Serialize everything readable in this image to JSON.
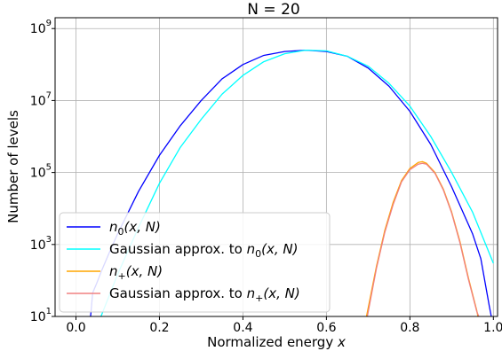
{
  "chart_data": {
    "type": "line",
    "title": "N = 20",
    "xlabel": "Normalized energy x",
    "ylabel": "Number of levels",
    "yscale": "log",
    "xlim": [
      -0.05,
      1.01
    ],
    "ylim": [
      10,
      2000000000
    ],
    "grid": true,
    "legend_position": "lower-left",
    "x_ticks": [
      "0.0",
      "0.2",
      "0.4",
      "0.6",
      "0.8",
      "1.0"
    ],
    "y_ticks": [
      {
        "base": "10",
        "exp": "1",
        "value": 10
      },
      {
        "base": "10",
        "exp": "3",
        "value": 1000
      },
      {
        "base": "10",
        "exp": "5",
        "value": 100000
      },
      {
        "base": "10",
        "exp": "7",
        "value": 10000000
      },
      {
        "base": "10",
        "exp": "9",
        "value": 1000000000
      }
    ],
    "series": [
      {
        "name": "n₀(x, N)",
        "color": "#0000ff",
        "points": [
          [
            0.035,
            10
          ],
          [
            0.036,
            13
          ],
          [
            0.04,
            45
          ],
          [
            0.05,
            85
          ],
          [
            0.06,
            170
          ],
          [
            0.08,
            600
          ],
          [
            0.1,
            2000
          ],
          [
            0.15,
            30000
          ],
          [
            0.2,
            300000
          ],
          [
            0.25,
            2000000
          ],
          [
            0.3,
            10000000
          ],
          [
            0.35,
            40000000
          ],
          [
            0.4,
            100000000
          ],
          [
            0.45,
            180000000
          ],
          [
            0.5,
            230000000
          ],
          [
            0.55,
            250000000
          ],
          [
            0.6,
            230000000
          ],
          [
            0.65,
            170000000
          ],
          [
            0.7,
            80000000
          ],
          [
            0.75,
            25000000
          ],
          [
            0.8,
            5000000
          ],
          [
            0.85,
            600000
          ],
          [
            0.9,
            40000
          ],
          [
            0.95,
            2000
          ],
          [
            0.97,
            400
          ],
          [
            0.99,
            20
          ],
          [
            0.995,
            10
          ]
        ]
      },
      {
        "name": "Gaussian approx. to n₀(x, N)",
        "color": "#00ffff",
        "points": [
          [
            0.06,
            10
          ],
          [
            0.1,
            150
          ],
          [
            0.15,
            3000
          ],
          [
            0.2,
            50000
          ],
          [
            0.25,
            500000
          ],
          [
            0.3,
            3000000
          ],
          [
            0.35,
            15000000
          ],
          [
            0.4,
            50000000
          ],
          [
            0.45,
            120000000
          ],
          [
            0.5,
            200000000
          ],
          [
            0.55,
            250000000
          ],
          [
            0.6,
            240000000
          ],
          [
            0.65,
            170000000
          ],
          [
            0.7,
            90000000
          ],
          [
            0.75,
            30000000
          ],
          [
            0.8,
            7000000
          ],
          [
            0.85,
            1000000
          ],
          [
            0.9,
            100000
          ],
          [
            0.95,
            8000
          ],
          [
            1.0,
            300
          ]
        ]
      },
      {
        "name": "n₊(x, N)",
        "color": "#ffa500",
        "points": [
          [
            0.696,
            10
          ],
          [
            0.72,
            250
          ],
          [
            0.74,
            2500
          ],
          [
            0.76,
            15000
          ],
          [
            0.78,
            60000
          ],
          [
            0.8,
            130000
          ],
          [
            0.82,
            190000
          ],
          [
            0.83,
            200000
          ],
          [
            0.84,
            180000
          ],
          [
            0.86,
            100000
          ],
          [
            0.88,
            35000
          ],
          [
            0.9,
            8000
          ],
          [
            0.92,
            1200
          ],
          [
            0.94,
            120
          ],
          [
            0.96,
            15
          ],
          [
            0.963,
            10
          ]
        ]
      },
      {
        "name": "Gaussian approx. to n₊(x, N)",
        "color": "#f08080",
        "points": [
          [
            0.698,
            10
          ],
          [
            0.72,
            220
          ],
          [
            0.74,
            2200
          ],
          [
            0.76,
            13000
          ],
          [
            0.78,
            55000
          ],
          [
            0.8,
            120000
          ],
          [
            0.82,
            170000
          ],
          [
            0.83,
            180000
          ],
          [
            0.84,
            170000
          ],
          [
            0.86,
            95000
          ],
          [
            0.88,
            33000
          ],
          [
            0.9,
            7500
          ],
          [
            0.92,
            1100
          ],
          [
            0.94,
            110
          ],
          [
            0.96,
            14
          ],
          [
            0.965,
            10
          ]
        ]
      }
    ],
    "legend": [
      {
        "main": "n",
        "sub": "0",
        "tail": "(x, N)",
        "prefix": "",
        "color": "#0000ff"
      },
      {
        "main": "n",
        "sub": "0",
        "tail": "(x, N)",
        "prefix": "Gaussian approx. to ",
        "color": "#00ffff"
      },
      {
        "main": "n",
        "sub": "+",
        "tail": "(x, N)",
        "prefix": "",
        "color": "#ffa500"
      },
      {
        "main": "n",
        "sub": "+",
        "tail": "(x, N)",
        "prefix": "Gaussian approx. to ",
        "color": "#f08080"
      }
    ]
  }
}
